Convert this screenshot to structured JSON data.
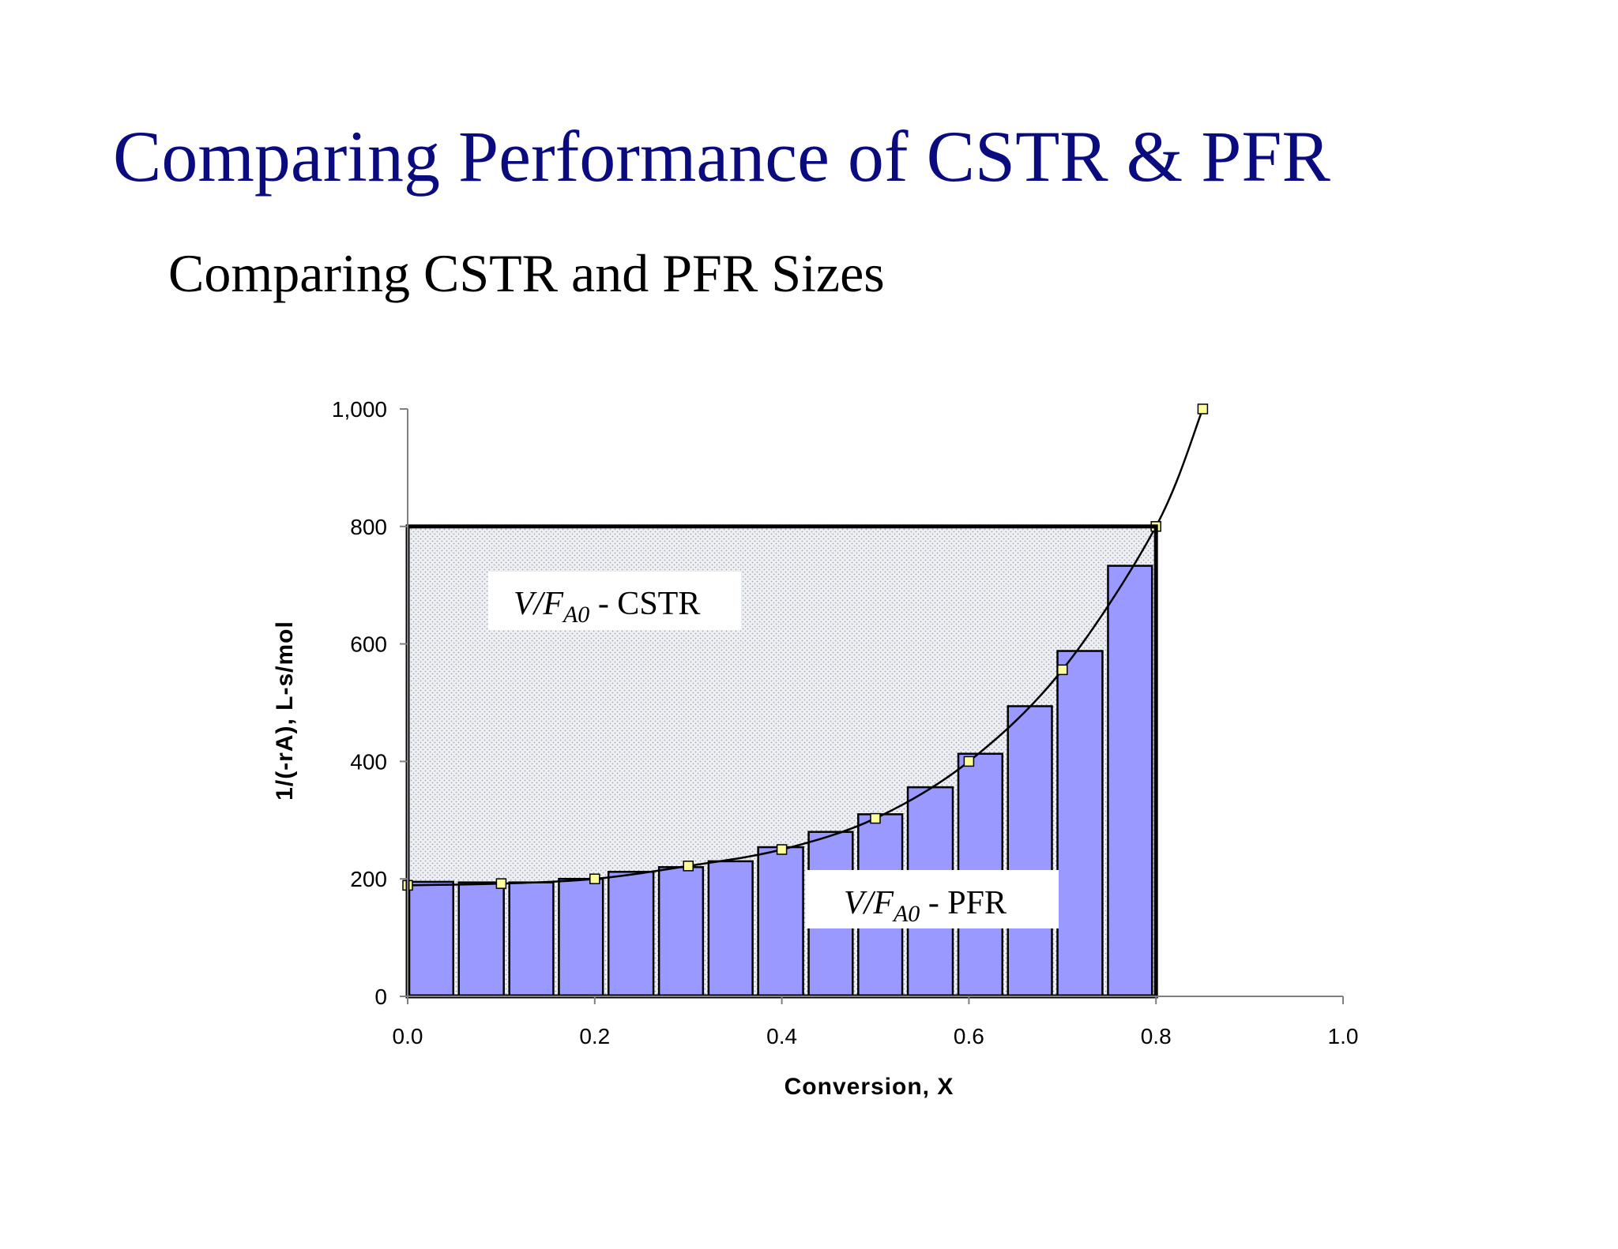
{
  "slide": {
    "title": "Comparing Performance of CSTR & PFR",
    "subtitle": "Comparing CSTR and PFR Sizes"
  },
  "colors": {
    "title": "#0b0b80",
    "bar_fill": "#9999ff",
    "marker_fill": "#ffff99",
    "cstr_region": "#e6e6ee"
  },
  "chart_data": {
    "type": "bar",
    "xlabel": "Conversion, X",
    "ylabel": "1/(-rA), L-s/mol",
    "xlim": [
      0,
      1.0
    ],
    "ylim": [
      0,
      1000
    ],
    "x_ticks": [
      "0.0",
      "0.2",
      "0.4",
      "0.6",
      "0.8",
      "1.0"
    ],
    "y_ticks": [
      "0",
      "200",
      "400",
      "600",
      "800",
      "1,000"
    ],
    "grid": false,
    "bars": {
      "name": "PFR rectangles",
      "x_start": [
        0.0,
        0.053,
        0.107,
        0.16,
        0.213,
        0.267,
        0.32,
        0.373,
        0.427,
        0.48,
        0.533,
        0.587,
        0.64,
        0.693,
        0.747
      ],
      "x_end": [
        0.053,
        0.107,
        0.16,
        0.213,
        0.267,
        0.32,
        0.373,
        0.427,
        0.48,
        0.533,
        0.587,
        0.64,
        0.693,
        0.747,
        0.8
      ],
      "values": [
        195,
        194,
        194,
        200,
        212,
        220,
        230,
        254,
        280,
        310,
        356,
        413,
        494,
        588,
        733
      ]
    },
    "curve": {
      "name": "1/(-rA)",
      "x": [
        0.0,
        0.1,
        0.2,
        0.3,
        0.4,
        0.5,
        0.6,
        0.7,
        0.8,
        0.85
      ],
      "y": [
        189,
        192,
        200,
        222,
        250,
        303,
        400,
        556,
        800,
        1000
      ]
    },
    "cstr_rectangle": {
      "x_max": 0.8,
      "y": 800
    },
    "annotations": {
      "cstr": {
        "main": "V/F",
        "sub": "A0",
        "rest": " - CSTR"
      },
      "pfr": {
        "main": "V/F",
        "sub": "A0",
        "rest": " - PFR"
      }
    }
  }
}
